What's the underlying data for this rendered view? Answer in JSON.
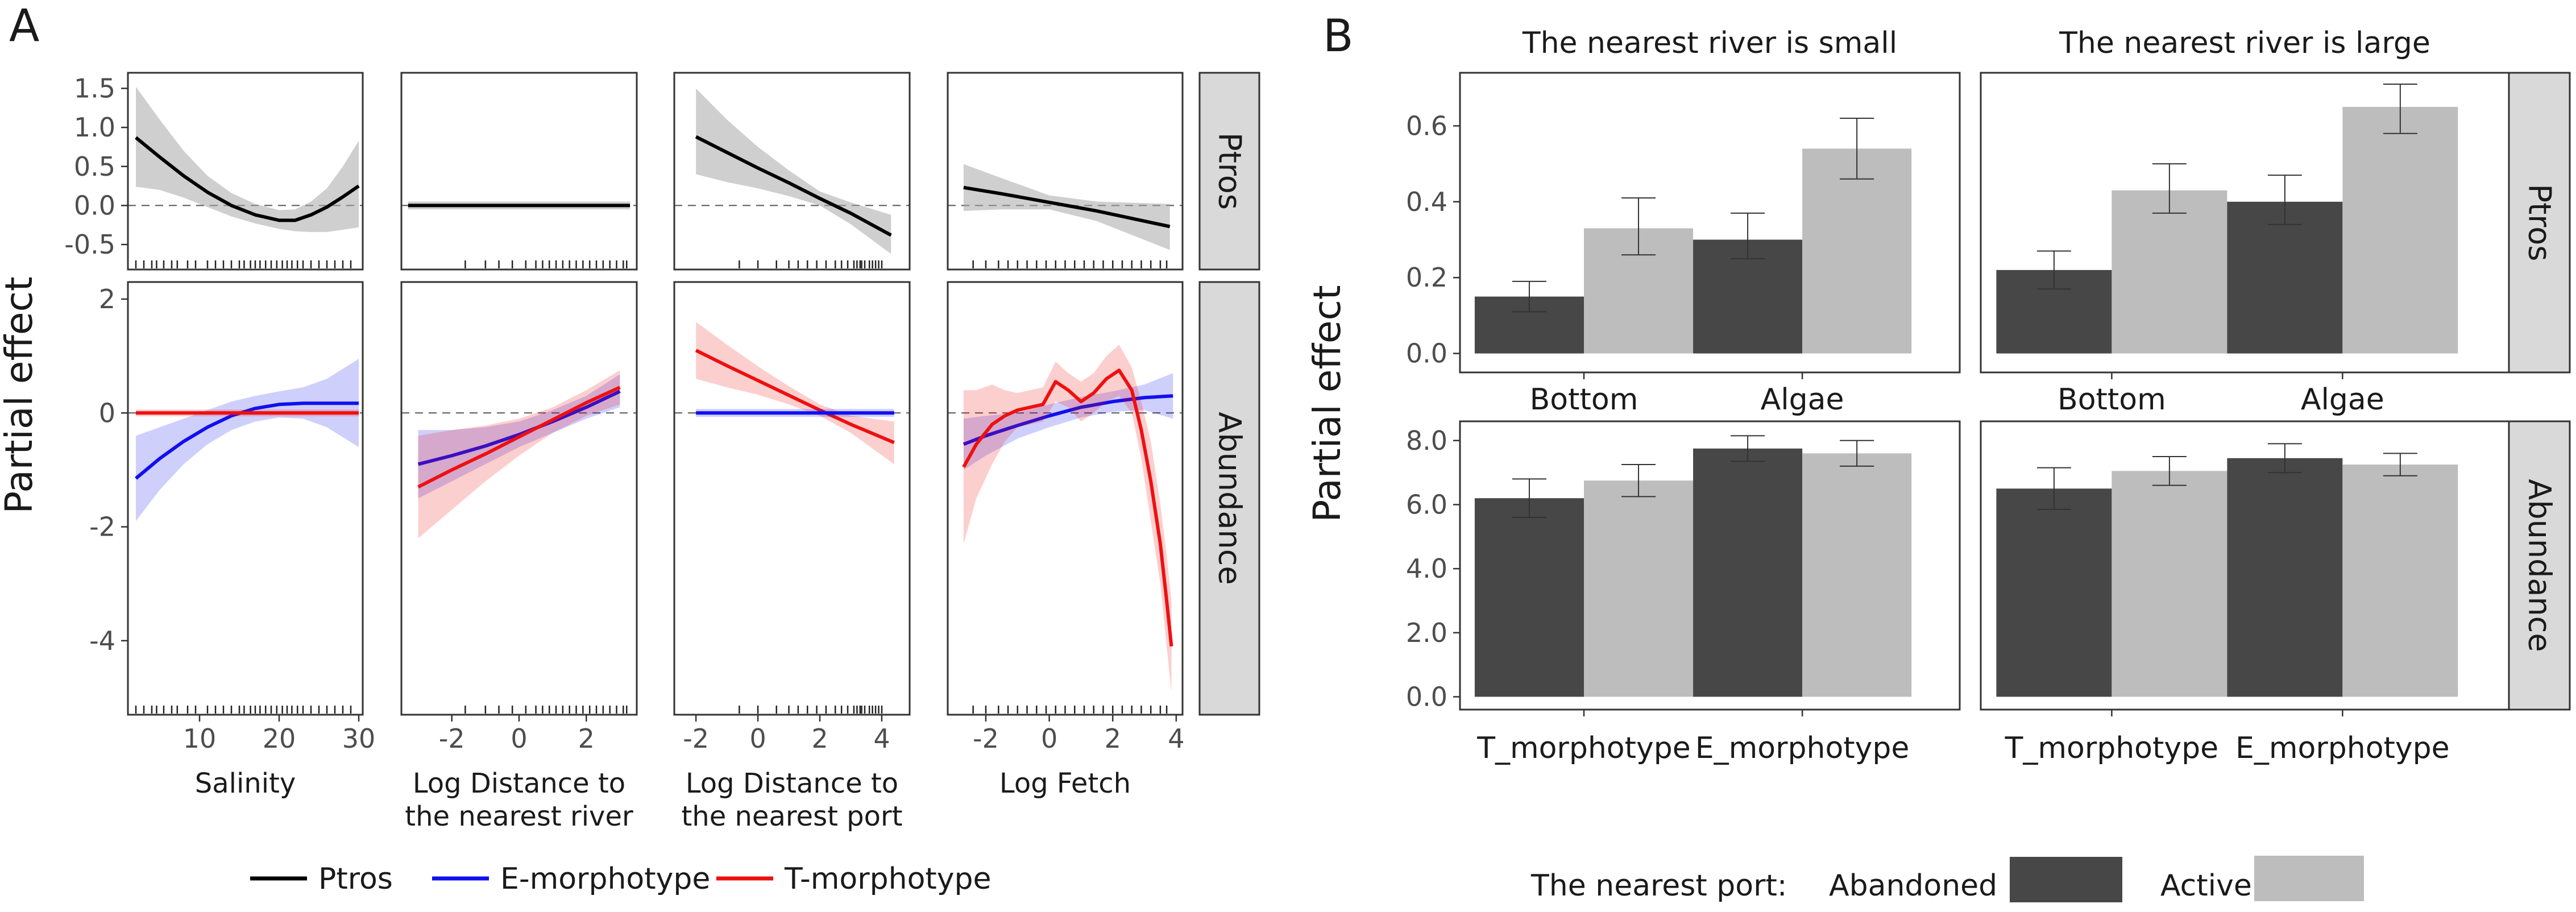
{
  "chart_data": [
    {
      "panel": "A",
      "type": "line",
      "ylabel": "Partial effect",
      "rows": [
        "Ptros",
        "Abundance"
      ],
      "legend": {
        "position": "bottom",
        "entries": [
          "Ptros",
          "E-morphotype",
          "T-morphotype"
        ]
      },
      "colors": {
        "Ptros": "#000000",
        "E-morphotype": "#1010ee",
        "T-morphotype": "#ee1010"
      },
      "columns": [
        {
          "xlabel_lines": [
            "Salinity"
          ],
          "xlim": [
            1,
            30.5
          ],
          "xticks": [
            10,
            20,
            30
          ]
        },
        {
          "xlabel_lines": [
            "Log Distance to",
            "the nearest river"
          ],
          "xlim": [
            -3.5,
            3.5
          ],
          "xticks": [
            -2,
            0,
            2
          ]
        },
        {
          "xlabel_lines": [
            "Log Distance to",
            "the nearest port"
          ],
          "xlim": [
            -2.7,
            4.9
          ],
          "xticks": [
            -2,
            0,
            2,
            4
          ]
        },
        {
          "xlabel_lines": [
            "Log Fetch"
          ],
          "xlim": [
            -3.2,
            4.2
          ],
          "xticks": [
            -2,
            0,
            2,
            4
          ]
        }
      ],
      "row_axes": [
        {
          "ylim": [
            -0.82,
            1.7
          ],
          "yticks": [
            1.5,
            1.0,
            0.5,
            0.0,
            -0.5
          ],
          "ytick_labels": [
            "1.5",
            "1.0",
            "0.5",
            "0.0",
            "-0.5"
          ]
        },
        {
          "ylim": [
            -5.3,
            2.3
          ],
          "yticks": [
            2,
            0,
            -2,
            -4
          ],
          "ytick_labels": [
            "2",
            "0",
            "-2",
            "-4"
          ]
        }
      ],
      "rugs": [
        [
          2,
          3,
          4,
          4.6,
          5.5,
          6.5,
          7.2,
          8.5,
          9.5,
          11,
          12,
          13,
          14,
          15,
          15.6,
          16.4,
          17,
          17.6,
          18.3,
          19,
          19.7,
          20.4,
          21,
          21.6,
          22.3,
          23,
          24,
          25,
          26,
          27,
          28,
          29
        ],
        [
          -1.6,
          -1,
          -0.6,
          -0.2,
          0.2,
          0.5,
          0.7,
          0.9,
          1.1,
          1.3,
          1.5,
          1.7,
          1.9,
          2.1,
          2.3,
          2.5,
          2.7,
          2.9,
          3.1,
          3.2
        ],
        [
          -0.6,
          0,
          0.6,
          1,
          1.3,
          1.6,
          1.9,
          2.2,
          2.5,
          2.7,
          2.9,
          3.1,
          3.2,
          3.3,
          3.35,
          3.45,
          3.6,
          3.7,
          3.8,
          3.9,
          4.0
        ],
        [
          -2.4,
          -2,
          -1.6,
          -1.3,
          -1,
          -0.7,
          -0.4,
          -0.1,
          0.2,
          0.5,
          0.8,
          1.1,
          1.4,
          1.7,
          2,
          2.3,
          2.6,
          2.9,
          3.2,
          3.5,
          3.7
        ]
      ],
      "curves": [
        {
          "row": 0,
          "col": 0,
          "series": "Ptros",
          "x": [
            2,
            5,
            8,
            11,
            14,
            17,
            20,
            22,
            24,
            26,
            28,
            30
          ],
          "y": [
            0.87,
            0.62,
            0.38,
            0.17,
            0.0,
            -0.12,
            -0.19,
            -0.19,
            -0.12,
            -0.02,
            0.11,
            0.25
          ],
          "lo": [
            0.24,
            0.2,
            0.1,
            -0.02,
            -0.14,
            -0.23,
            -0.3,
            -0.33,
            -0.34,
            -0.34,
            -0.31,
            -0.28
          ],
          "hi": [
            1.52,
            1.1,
            0.7,
            0.38,
            0.16,
            0.02,
            -0.06,
            -0.05,
            0.05,
            0.22,
            0.5,
            0.83
          ]
        },
        {
          "row": 0,
          "col": 1,
          "series": "Ptros",
          "x": [
            -3.3,
            3.3
          ],
          "y": [
            0.0,
            0.0
          ],
          "lo": [
            -0.05,
            -0.05
          ],
          "hi": [
            0.05,
            0.05
          ]
        },
        {
          "row": 0,
          "col": 2,
          "series": "Ptros",
          "x": [
            -2,
            -1,
            0,
            1,
            2,
            3,
            4.3
          ],
          "y": [
            0.88,
            0.68,
            0.48,
            0.29,
            0.09,
            -0.1,
            -0.38
          ],
          "lo": [
            0.4,
            0.3,
            0.22,
            0.12,
            0.0,
            -0.24,
            -0.62
          ],
          "hi": [
            1.5,
            1.1,
            0.75,
            0.45,
            0.18,
            0.04,
            -0.12
          ]
        },
        {
          "row": 0,
          "col": 3,
          "series": "Ptros",
          "x": [
            -2.7,
            -1.5,
            0,
            1.5,
            3.8
          ],
          "y": [
            0.23,
            0.15,
            0.04,
            -0.07,
            -0.27
          ],
          "lo": [
            -0.07,
            -0.05,
            -0.05,
            -0.2,
            -0.57
          ],
          "hi": [
            0.53,
            0.35,
            0.13,
            0.05,
            0.02
          ]
        },
        {
          "row": 1,
          "col": 0,
          "series": "E-morphotype",
          "x": [
            2,
            5,
            8,
            11,
            14,
            17,
            20,
            23,
            26,
            30
          ],
          "y": [
            -1.15,
            -0.8,
            -0.5,
            -0.25,
            -0.05,
            0.08,
            0.15,
            0.17,
            0.17,
            0.17
          ],
          "lo": [
            -1.9,
            -1.35,
            -0.9,
            -0.55,
            -0.3,
            -0.15,
            -0.08,
            -0.1,
            -0.25,
            -0.6
          ],
          "hi": [
            -0.4,
            -0.25,
            -0.1,
            0.05,
            0.2,
            0.3,
            0.38,
            0.45,
            0.6,
            0.95
          ]
        },
        {
          "row": 1,
          "col": 0,
          "series": "T-morphotype",
          "x": [
            2,
            30
          ],
          "y": [
            0.0,
            0.0
          ],
          "lo": [
            -0.06,
            -0.06
          ],
          "hi": [
            0.06,
            0.06
          ]
        },
        {
          "row": 1,
          "col": 1,
          "series": "E-morphotype",
          "x": [
            -3,
            -2,
            -1,
            0,
            1,
            2,
            3
          ],
          "y": [
            -0.9,
            -0.75,
            -0.58,
            -0.38,
            -0.15,
            0.1,
            0.38
          ],
          "lo": [
            -1.5,
            -1.2,
            -0.9,
            -0.6,
            -0.35,
            -0.1,
            0.1
          ],
          "hi": [
            -0.3,
            -0.3,
            -0.25,
            -0.15,
            0.05,
            0.3,
            0.68
          ]
        },
        {
          "row": 1,
          "col": 1,
          "series": "T-morphotype",
          "x": [
            -3,
            -2,
            -1,
            0,
            1,
            2,
            3
          ],
          "y": [
            -1.3,
            -1.0,
            -0.72,
            -0.42,
            -0.12,
            0.18,
            0.45
          ],
          "lo": [
            -2.2,
            -1.7,
            -1.2,
            -0.75,
            -0.35,
            -0.05,
            0.15
          ],
          "hi": [
            -0.4,
            -0.3,
            -0.22,
            -0.1,
            0.1,
            0.4,
            0.75
          ]
        },
        {
          "row": 1,
          "col": 2,
          "series": "T-morphotype",
          "x": [
            -2,
            -1,
            0,
            1,
            2,
            3,
            4.4
          ],
          "y": [
            1.1,
            0.83,
            0.57,
            0.31,
            0.05,
            -0.2,
            -0.52
          ],
          "lo": [
            0.6,
            0.45,
            0.32,
            0.15,
            -0.05,
            -0.35,
            -0.9
          ],
          "hi": [
            1.6,
            1.2,
            0.82,
            0.47,
            0.15,
            -0.05,
            -0.15
          ]
        },
        {
          "row": 1,
          "col": 2,
          "series": "E-morphotype",
          "x": [
            -2,
            4.4
          ],
          "y": [
            0.0,
            0.0
          ],
          "lo": [
            -0.07,
            -0.07
          ],
          "hi": [
            0.07,
            0.07
          ]
        },
        {
          "row": 1,
          "col": 3,
          "series": "E-morphotype",
          "x": [
            -2.7,
            -2,
            -1,
            0,
            1,
            2,
            3,
            3.9
          ],
          "y": [
            -0.55,
            -0.4,
            -0.22,
            -0.05,
            0.1,
            0.2,
            0.27,
            0.3
          ],
          "lo": [
            -1.0,
            -0.75,
            -0.45,
            -0.25,
            -0.08,
            0.02,
            0.05,
            -0.1
          ],
          "hi": [
            -0.1,
            -0.05,
            0.0,
            0.15,
            0.28,
            0.38,
            0.5,
            0.7
          ]
        },
        {
          "row": 1,
          "col": 3,
          "series": "T-morphotype",
          "x": [
            -2.7,
            -2.3,
            -1.8,
            -1.4,
            -1,
            -0.6,
            -0.2,
            0.2,
            0.6,
            1,
            1.4,
            1.8,
            2.2,
            2.6,
            2.9,
            3.2,
            3.5,
            3.7,
            3.85
          ],
          "y": [
            -0.95,
            -0.55,
            -0.2,
            -0.05,
            0.05,
            0.1,
            0.15,
            0.55,
            0.4,
            0.2,
            0.35,
            0.6,
            0.75,
            0.4,
            -0.3,
            -1.2,
            -2.3,
            -3.3,
            -4.1
          ],
          "lo": [
            -2.3,
            -1.5,
            -0.9,
            -0.5,
            -0.25,
            -0.2,
            -0.15,
            0.2,
            0.1,
            -0.15,
            0.0,
            0.2,
            0.3,
            0.0,
            -0.8,
            -1.9,
            -3.0,
            -4.1,
            -4.9
          ],
          "hi": [
            0.4,
            0.4,
            0.5,
            0.4,
            0.35,
            0.4,
            0.45,
            0.9,
            0.7,
            0.55,
            0.7,
            1.0,
            1.2,
            0.8,
            0.2,
            -0.5,
            -1.6,
            -2.5,
            -3.3
          ]
        }
      ]
    },
    {
      "panel": "B",
      "type": "bar",
      "ylabel": "Partial effect",
      "column_titles": [
        "The nearest river is small",
        "The nearest river is large"
      ],
      "rows": [
        "Ptros",
        "Abundance"
      ],
      "row_categories": [
        [
          "Bottom",
          "Algae"
        ],
        [
          "T_morphotype",
          "E_morphotype"
        ]
      ],
      "row_axes": [
        {
          "ylim": [
            -0.05,
            0.74
          ],
          "yticks": [
            0.0,
            0.2,
            0.4,
            0.6
          ],
          "ytick_labels": [
            "0.0",
            "0.2",
            "0.4",
            "0.6"
          ]
        },
        {
          "ylim": [
            -0.4,
            8.6
          ],
          "yticks": [
            0.0,
            2.0,
            4.0,
            6.0,
            8.0
          ],
          "ytick_labels": [
            "0.0",
            "2.0",
            "4.0",
            "6.0",
            "8.0"
          ]
        }
      ],
      "legend": {
        "title": "The  nearest port:",
        "position": "bottom",
        "entries": [
          "Abandoned",
          "Active"
        ]
      },
      "colors": {
        "Abandoned": "#474747",
        "Active": "#bdbdbd"
      },
      "panels": [
        {
          "row": 0,
          "col": 0,
          "abandoned": [
            0.15,
            0.3
          ],
          "active": [
            0.33,
            0.54
          ],
          "abandoned_ci": [
            [
              0.11,
              0.19
            ],
            [
              0.25,
              0.37
            ]
          ],
          "active_ci": [
            [
              0.26,
              0.41
            ],
            [
              0.46,
              0.62
            ]
          ]
        },
        {
          "row": 0,
          "col": 1,
          "abandoned": [
            0.22,
            0.4
          ],
          "active": [
            0.43,
            0.65
          ],
          "abandoned_ci": [
            [
              0.17,
              0.27
            ],
            [
              0.34,
              0.47
            ]
          ],
          "active_ci": [
            [
              0.37,
              0.5
            ],
            [
              0.58,
              0.71
            ]
          ]
        },
        {
          "row": 1,
          "col": 0,
          "abandoned": [
            6.2,
            7.75
          ],
          "active": [
            6.75,
            7.6
          ],
          "abandoned_ci": [
            [
              5.6,
              6.8
            ],
            [
              7.35,
              8.15
            ]
          ],
          "active_ci": [
            [
              6.25,
              7.25
            ],
            [
              7.2,
              8.0
            ]
          ]
        },
        {
          "row": 1,
          "col": 1,
          "abandoned": [
            6.5,
            7.45
          ],
          "active": [
            7.05,
            7.25
          ],
          "abandoned_ci": [
            [
              5.85,
              7.15
            ],
            [
              7.0,
              7.9
            ]
          ],
          "active_ci": [
            [
              6.6,
              7.5
            ],
            [
              6.9,
              7.6
            ]
          ]
        }
      ]
    }
  ]
}
